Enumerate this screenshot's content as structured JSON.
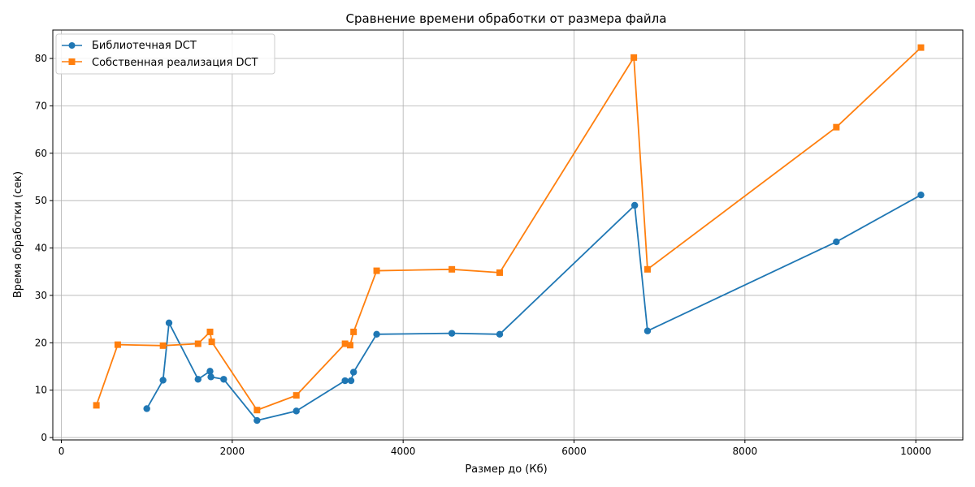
{
  "chart_data": {
    "type": "line",
    "title": "Сравнение времени обработки от размера файла",
    "xlabel": "Размер до (Кб)",
    "ylabel": "Время обработки (сек)",
    "xlim": [
      -100,
      10550
    ],
    "ylim": [
      -0.5,
      86
    ],
    "xticks": [
      0,
      2000,
      4000,
      6000,
      8000,
      10000
    ],
    "yticks": [
      0,
      10,
      20,
      30,
      40,
      50,
      60,
      70,
      80
    ],
    "grid": true,
    "legend_position": "top-left",
    "series": [
      {
        "name": "Библиотечная DCT",
        "color": "#1f77b4",
        "marker": "circle",
        "points": [
          [
            1000,
            6.1
          ],
          [
            1190,
            12.1
          ],
          [
            1260,
            24.2
          ],
          [
            1600,
            12.3
          ],
          [
            1740,
            14.0
          ],
          [
            1750,
            12.8
          ],
          [
            1900,
            12.3
          ],
          [
            2290,
            3.6
          ],
          [
            2750,
            5.6
          ],
          [
            3320,
            12.0
          ],
          [
            3390,
            12.0
          ],
          [
            3420,
            13.8
          ],
          [
            3690,
            21.8
          ],
          [
            4570,
            22.0
          ],
          [
            5130,
            21.8
          ],
          [
            6710,
            49.0
          ],
          [
            6860,
            22.5
          ],
          [
            9070,
            41.3
          ],
          [
            10060,
            51.2
          ]
        ]
      },
      {
        "name": "Собственная реализация DCT",
        "color": "#ff7f0e",
        "marker": "square",
        "points": [
          [
            410,
            6.8
          ],
          [
            660,
            19.6
          ],
          [
            1190,
            19.4
          ],
          [
            1600,
            19.8
          ],
          [
            1740,
            22.3
          ],
          [
            1760,
            20.2
          ],
          [
            2290,
            5.8
          ],
          [
            2750,
            8.9
          ],
          [
            3320,
            19.8
          ],
          [
            3380,
            19.5
          ],
          [
            3420,
            22.3
          ],
          [
            3690,
            35.2
          ],
          [
            4570,
            35.5
          ],
          [
            5130,
            34.8
          ],
          [
            6700,
            80.2
          ],
          [
            6860,
            35.5
          ],
          [
            9070,
            65.5
          ],
          [
            10060,
            82.3
          ]
        ]
      }
    ]
  }
}
